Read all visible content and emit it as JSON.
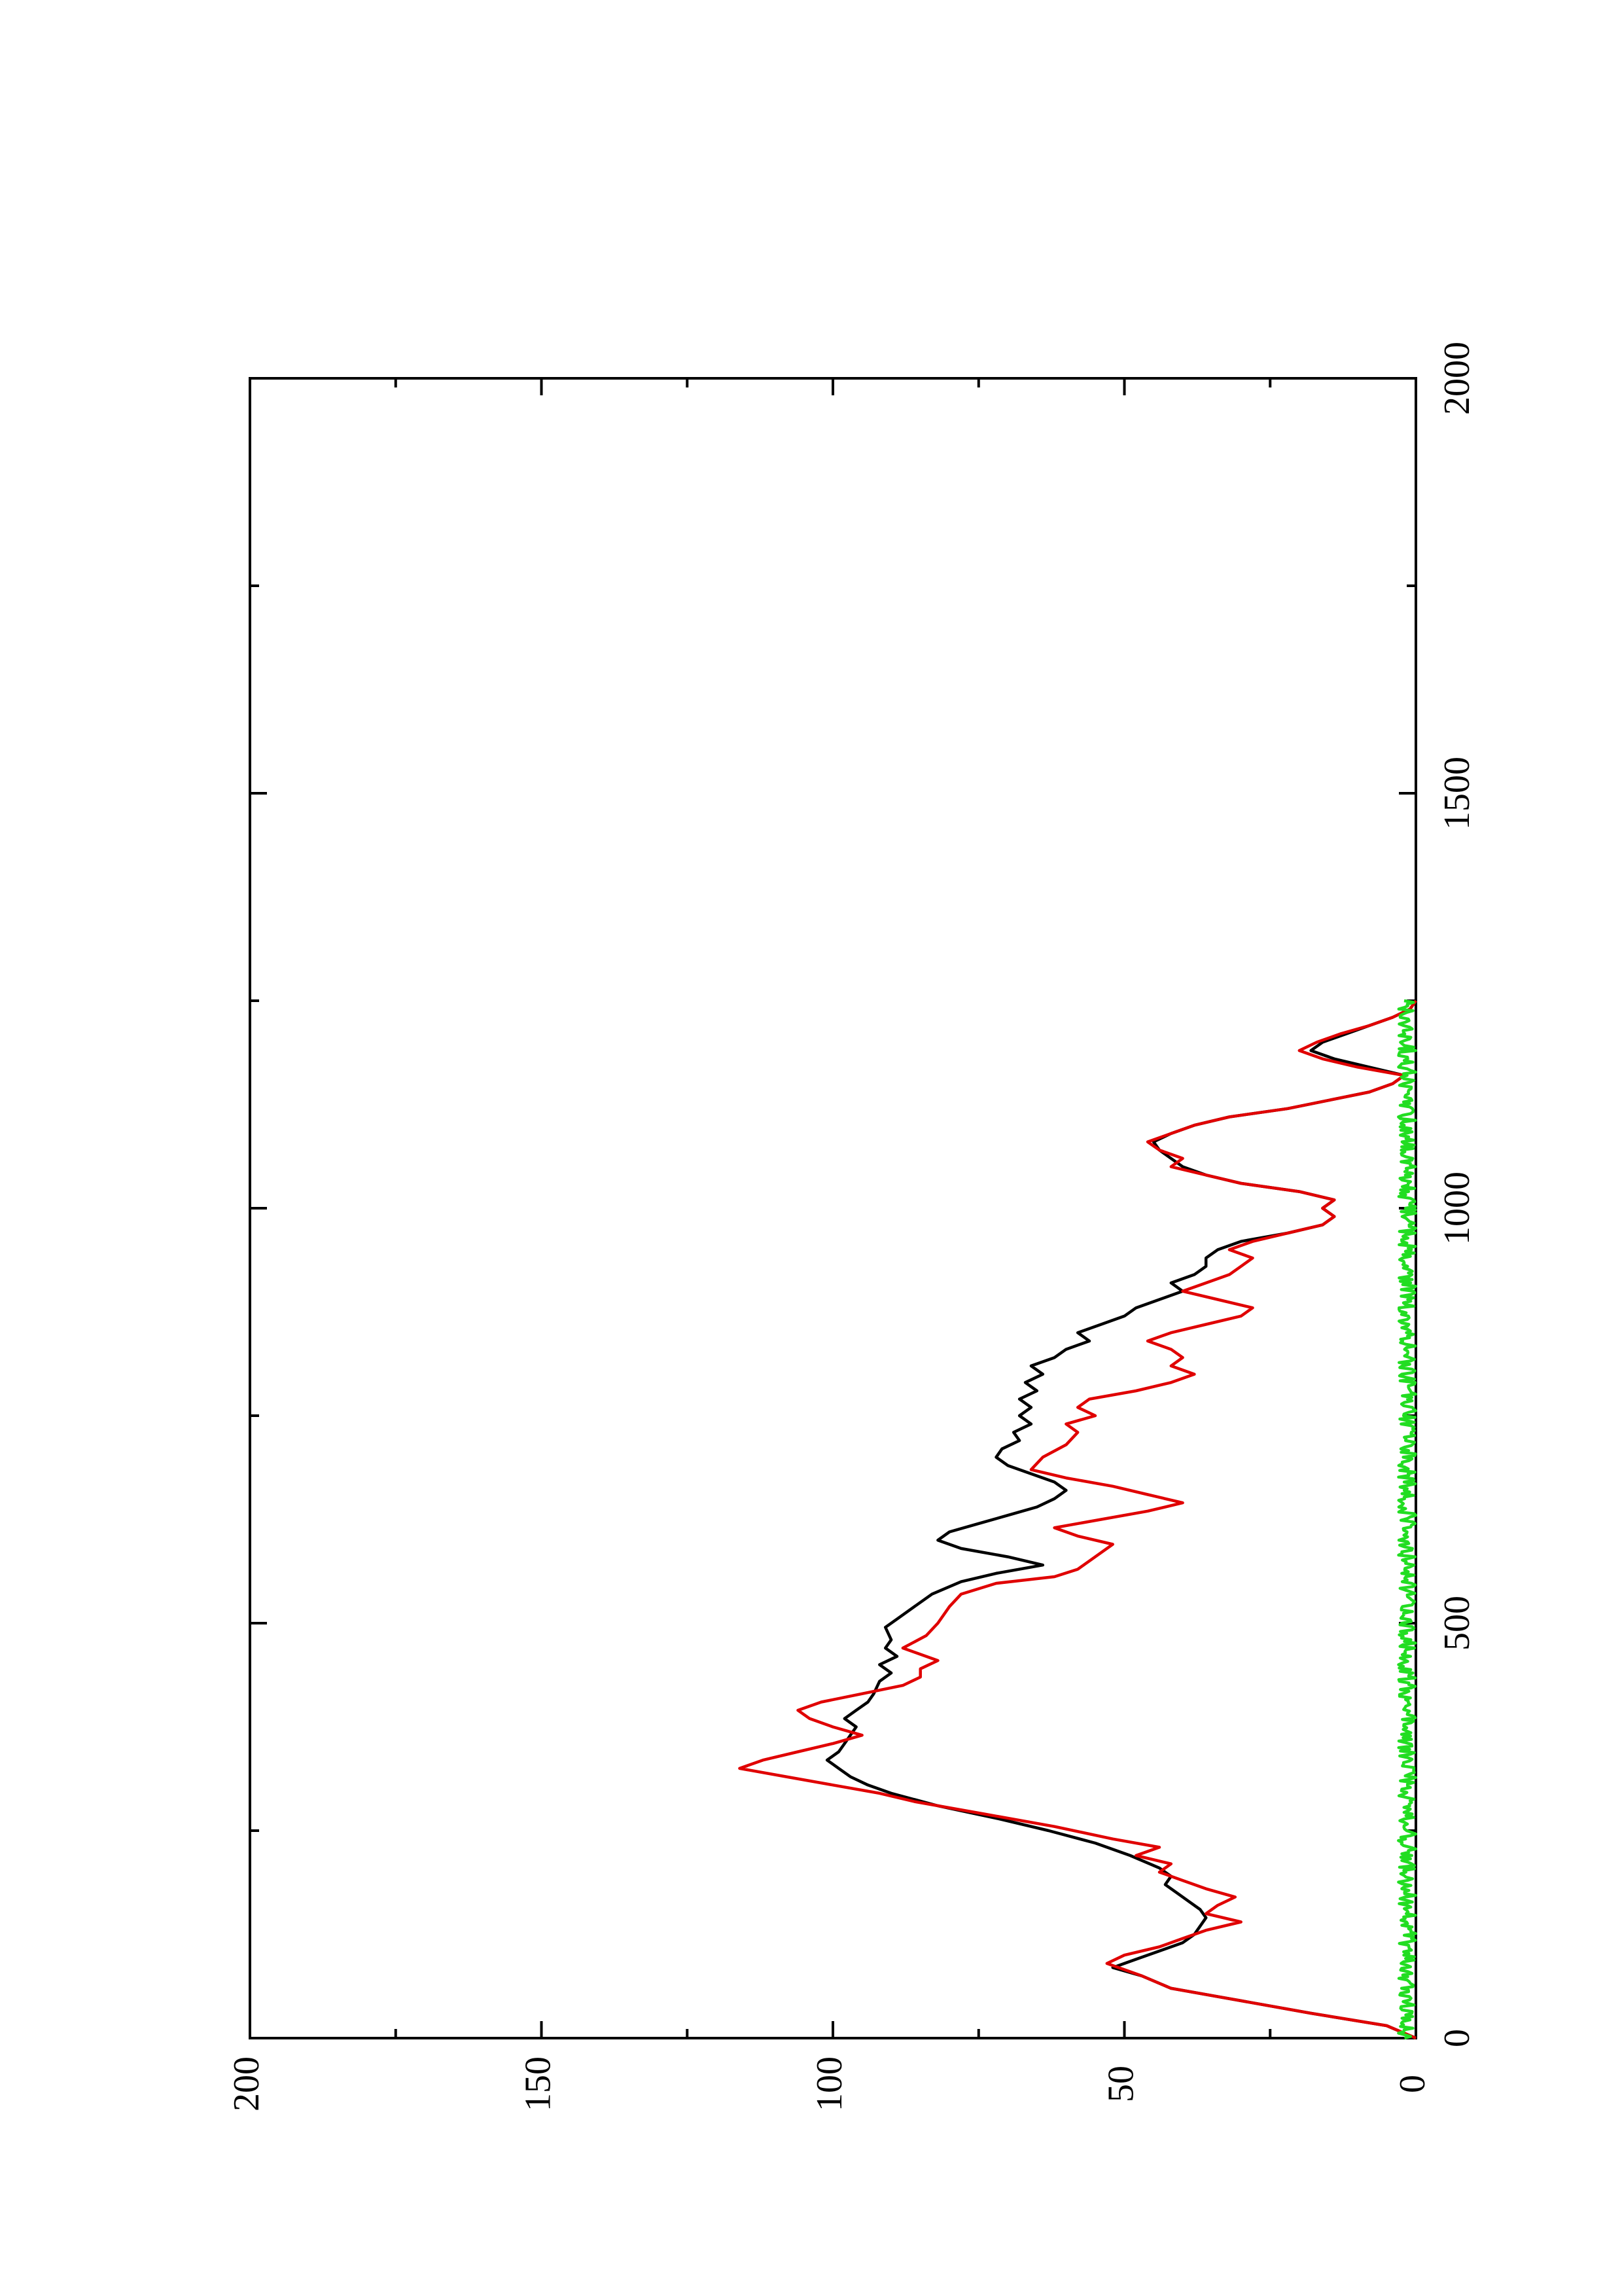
{
  "chart_data": {
    "type": "line",
    "orientation": "rotated-90-clockwise",
    "title": "",
    "xlabel": "",
    "ylabel": "",
    "xlim": [
      0,
      2000
    ],
    "ylim": [
      0,
      200
    ],
    "x_ticks": [
      0,
      500,
      1000,
      1500,
      2000
    ],
    "y_ticks": [
      0,
      50,
      100,
      150,
      200
    ],
    "x_minor_ticks": [
      250,
      750,
      1250,
      1750
    ],
    "y_minor_ticks": [
      25,
      75,
      125,
      175
    ],
    "grid": false,
    "legend": "none",
    "series": [
      {
        "color": "#000000",
        "points": [
          [
            0,
            0
          ],
          [
            15,
            5
          ],
          [
            30,
            18
          ],
          [
            45,
            30
          ],
          [
            60,
            42
          ],
          [
            75,
            47
          ],
          [
            85,
            52
          ],
          [
            95,
            48
          ],
          [
            105,
            44
          ],
          [
            115,
            40
          ],
          [
            125,
            38
          ],
          [
            135,
            37
          ],
          [
            145,
            36
          ],
          [
            155,
            37
          ],
          [
            165,
            39
          ],
          [
            175,
            41
          ],
          [
            185,
            43
          ],
          [
            195,
            42
          ],
          [
            205,
            44
          ],
          [
            220,
            49
          ],
          [
            235,
            55
          ],
          [
            250,
            63
          ],
          [
            265,
            72
          ],
          [
            280,
            82
          ],
          [
            295,
            90
          ],
          [
            305,
            94
          ],
          [
            315,
            97
          ],
          [
            325,
            99
          ],
          [
            335,
            101
          ],
          [
            345,
            99
          ],
          [
            355,
            98
          ],
          [
            365,
            97
          ],
          [
            375,
            96
          ],
          [
            385,
            98
          ],
          [
            395,
            96
          ],
          [
            405,
            94
          ],
          [
            415,
            93
          ],
          [
            430,
            92
          ],
          [
            440,
            90
          ],
          [
            450,
            92
          ],
          [
            460,
            89
          ],
          [
            470,
            91
          ],
          [
            480,
            90
          ],
          [
            495,
            91
          ],
          [
            505,
            89
          ],
          [
            520,
            86
          ],
          [
            535,
            83
          ],
          [
            550,
            78
          ],
          [
            560,
            72
          ],
          [
            570,
            64
          ],
          [
            580,
            70
          ],
          [
            590,
            78
          ],
          [
            600,
            82
          ],
          [
            610,
            80
          ],
          [
            620,
            75
          ],
          [
            630,
            70
          ],
          [
            640,
            65
          ],
          [
            650,
            62
          ],
          [
            660,
            60
          ],
          [
            670,
            62
          ],
          [
            680,
            66
          ],
          [
            690,
            70
          ],
          [
            700,
            72
          ],
          [
            710,
            71
          ],
          [
            720,
            68
          ],
          [
            730,
            69
          ],
          [
            740,
            66
          ],
          [
            750,
            68
          ],
          [
            760,
            66
          ],
          [
            770,
            68
          ],
          [
            780,
            65
          ],
          [
            790,
            67
          ],
          [
            800,
            64
          ],
          [
            810,
            66
          ],
          [
            820,
            62
          ],
          [
            830,
            60
          ],
          [
            840,
            56
          ],
          [
            850,
            58
          ],
          [
            860,
            54
          ],
          [
            870,
            50
          ],
          [
            880,
            48
          ],
          [
            890,
            44
          ],
          [
            900,
            40
          ],
          [
            910,
            42
          ],
          [
            920,
            38
          ],
          [
            930,
            36
          ],
          [
            940,
            36
          ],
          [
            950,
            34
          ],
          [
            960,
            30
          ],
          [
            970,
            22
          ],
          [
            980,
            16
          ],
          [
            990,
            14
          ],
          [
            1000,
            16
          ],
          [
            1010,
            14
          ],
          [
            1020,
            20
          ],
          [
            1030,
            30
          ],
          [
            1040,
            36
          ],
          [
            1050,
            40
          ],
          [
            1060,
            42
          ],
          [
            1070,
            44
          ],
          [
            1080,
            45
          ],
          [
            1090,
            42
          ],
          [
            1100,
            38
          ],
          [
            1110,
            32
          ],
          [
            1120,
            22
          ],
          [
            1130,
            15
          ],
          [
            1140,
            8
          ],
          [
            1150,
            4
          ],
          [
            1160,
            2
          ],
          [
            1170,
            8
          ],
          [
            1180,
            14
          ],
          [
            1190,
            18
          ],
          [
            1200,
            16
          ],
          [
            1210,
            12
          ],
          [
            1220,
            8
          ],
          [
            1230,
            4
          ],
          [
            1240,
            1
          ],
          [
            1250,
            0
          ]
        ]
      },
      {
        "color": "#e00000",
        "points": [
          [
            0,
            0
          ],
          [
            15,
            5
          ],
          [
            30,
            18
          ],
          [
            45,
            30
          ],
          [
            60,
            42
          ],
          [
            75,
            47
          ],
          [
            90,
            53
          ],
          [
            100,
            50
          ],
          [
            110,
            44
          ],
          [
            120,
            40
          ],
          [
            130,
            36
          ],
          [
            140,
            30
          ],
          [
            150,
            36
          ],
          [
            160,
            34
          ],
          [
            170,
            31
          ],
          [
            180,
            36
          ],
          [
            190,
            40
          ],
          [
            200,
            44
          ],
          [
            210,
            42
          ],
          [
            220,
            48
          ],
          [
            230,
            44
          ],
          [
            240,
            52
          ],
          [
            255,
            62
          ],
          [
            270,
            74
          ],
          [
            285,
            86
          ],
          [
            295,
            92
          ],
          [
            305,
            100
          ],
          [
            315,
            108
          ],
          [
            325,
            116
          ],
          [
            335,
            112
          ],
          [
            345,
            106
          ],
          [
            355,
            100
          ],
          [
            365,
            95
          ],
          [
            375,
            100
          ],
          [
            385,
            104
          ],
          [
            395,
            106
          ],
          [
            405,
            102
          ],
          [
            415,
            95
          ],
          [
            425,
            88
          ],
          [
            435,
            85
          ],
          [
            445,
            85
          ],
          [
            455,
            82
          ],
          [
            470,
            88
          ],
          [
            485,
            84
          ],
          [
            500,
            82
          ],
          [
            520,
            80
          ],
          [
            535,
            78
          ],
          [
            548,
            72
          ],
          [
            556,
            62
          ],
          [
            565,
            58
          ],
          [
            575,
            56
          ],
          [
            585,
            54
          ],
          [
            595,
            52
          ],
          [
            605,
            58
          ],
          [
            615,
            62
          ],
          [
            625,
            54
          ],
          [
            635,
            46
          ],
          [
            645,
            40
          ],
          [
            655,
            46
          ],
          [
            665,
            52
          ],
          [
            675,
            60
          ],
          [
            685,
            66
          ],
          [
            700,
            64
          ],
          [
            715,
            60
          ],
          [
            730,
            58
          ],
          [
            740,
            60
          ],
          [
            750,
            55
          ],
          [
            760,
            58
          ],
          [
            770,
            56
          ],
          [
            780,
            48
          ],
          [
            790,
            42
          ],
          [
            800,
            38
          ],
          [
            810,
            42
          ],
          [
            820,
            40
          ],
          [
            830,
            42
          ],
          [
            840,
            46
          ],
          [
            850,
            42
          ],
          [
            860,
            36
          ],
          [
            870,
            30
          ],
          [
            880,
            28
          ],
          [
            890,
            34
          ],
          [
            900,
            40
          ],
          [
            910,
            36
          ],
          [
            920,
            32
          ],
          [
            930,
            30
          ],
          [
            940,
            28
          ],
          [
            950,
            32
          ],
          [
            960,
            28
          ],
          [
            970,
            22
          ],
          [
            980,
            16
          ],
          [
            990,
            14
          ],
          [
            1000,
            16
          ],
          [
            1010,
            14
          ],
          [
            1020,
            20
          ],
          [
            1030,
            30
          ],
          [
            1040,
            36
          ],
          [
            1050,
            42
          ],
          [
            1060,
            40
          ],
          [
            1070,
            44
          ],
          [
            1080,
            46
          ],
          [
            1090,
            42
          ],
          [
            1100,
            38
          ],
          [
            1110,
            32
          ],
          [
            1120,
            22
          ],
          [
            1130,
            15
          ],
          [
            1140,
            8
          ],
          [
            1150,
            4
          ],
          [
            1160,
            2
          ],
          [
            1170,
            10
          ],
          [
            1180,
            16
          ],
          [
            1190,
            20
          ],
          [
            1200,
            17
          ],
          [
            1210,
            13
          ],
          [
            1220,
            8
          ],
          [
            1230,
            4
          ],
          [
            1240,
            1
          ],
          [
            1250,
            0
          ]
        ]
      },
      {
        "color": "#22dd22",
        "noise_range": [
          0,
          3
        ],
        "x_range": [
          0,
          1250
        ]
      }
    ]
  }
}
